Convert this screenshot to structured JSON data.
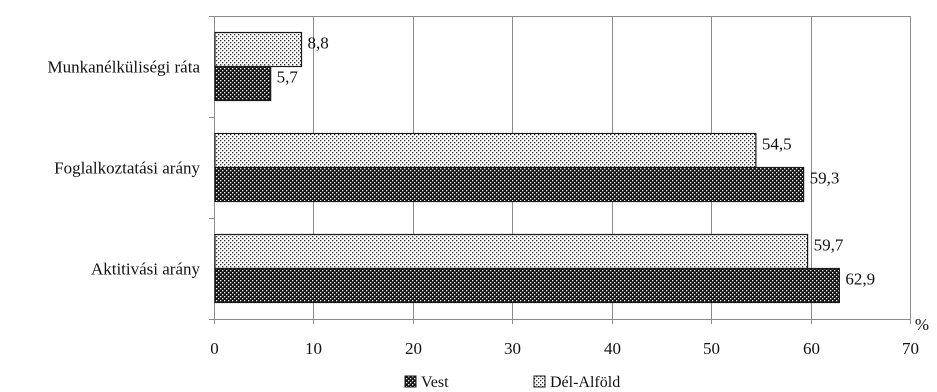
{
  "chart_data": {
    "type": "bar",
    "orientation": "horizontal",
    "title": "",
    "xlabel": "",
    "ylabel": "",
    "unit_label": "%",
    "categories": [
      "Munkanélküliségi ráta",
      "Foglalkoztatási arány",
      "Aktitivási arány"
    ],
    "series": [
      {
        "name": "Vest",
        "values": [
          5.7,
          59.3,
          62.9
        ],
        "labels": [
          "5,7",
          "59,3",
          "62,9"
        ],
        "pattern": "dark-dotted",
        "color": "#1a1a1a"
      },
      {
        "name": "Dél-Alföld",
        "values": [
          8.8,
          54.5,
          59.7
        ],
        "labels": [
          "8,8",
          "54,5",
          "59,7"
        ],
        "pattern": "light-dotted",
        "color": "#ffffff"
      }
    ],
    "xlim": [
      0,
      70
    ],
    "xticks": [
      0,
      10,
      20,
      30,
      40,
      50,
      60,
      70
    ],
    "xtick_labels": [
      "0",
      "10",
      "20",
      "30",
      "40",
      "50",
      "60",
      "70"
    ],
    "grid": "vertical",
    "legend_position": "bottom"
  }
}
